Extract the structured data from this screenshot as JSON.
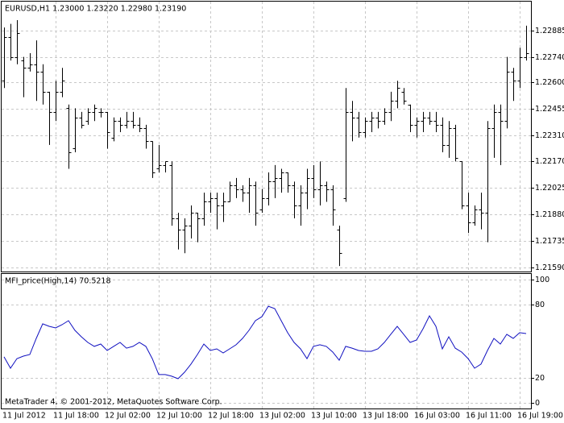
{
  "chart_data": [
    {
      "type": "ohlc",
      "title": "EURUSD,H1  1.23000 1.23220 1.22980 1.23190",
      "color": "#000000",
      "grid": true,
      "categories": [
        "11 Jul 2012",
        null,
        null,
        null,
        null,
        null,
        null,
        null,
        "11 Jul 18:00",
        null,
        null,
        null,
        null,
        null,
        null,
        null,
        "12 Jul 02:00",
        null,
        null,
        null,
        null,
        null,
        null,
        null,
        "12 Jul 10:00",
        null,
        null,
        null,
        null,
        null,
        null,
        null,
        "12 Jul 18:00",
        null,
        null,
        null,
        null,
        null,
        null,
        null,
        "13 Jul 02:00",
        null,
        null,
        null,
        null,
        null,
        null,
        null,
        "13 Jul 10:00",
        null,
        null,
        null,
        null,
        null,
        null,
        null,
        "13 Jul 18:00",
        null,
        null,
        null,
        null,
        null,
        null,
        null,
        "16 Jul 03:00",
        null,
        null,
        null,
        null,
        null,
        null,
        null,
        "16 Jul 11:00",
        null,
        null,
        null,
        null,
        null,
        null,
        null,
        "16 Jul 19:00",
        null
      ],
      "open": [
        1.2261,
        1.2285,
        1.2274,
        1.2272,
        1.2268,
        1.227,
        1.2266,
        1.2255,
        1.2244,
        1.2255,
        1.2246,
        1.2224,
        1.2241,
        1.2239,
        1.2244,
        1.2244,
        1.2244,
        1.223,
        1.2239,
        1.2237,
        1.2239,
        1.2237,
        1.2235,
        1.2228,
        1.2213,
        1.2215,
        1.2215,
        1.2186,
        1.218,
        1.2182,
        1.2189,
        1.2186,
        1.2195,
        1.2197,
        1.2193,
        1.2195,
        1.2204,
        1.2202,
        1.22,
        1.2204,
        1.2191,
        1.2197,
        1.2206,
        1.2208,
        1.2211,
        1.2204,
        1.2193,
        1.22,
        1.2208,
        1.2202,
        1.2204,
        1.2202,
        1.218,
        1.2197,
        1.2244,
        1.2241,
        1.2233,
        1.2239,
        1.2241,
        1.2239,
        1.2244,
        1.225,
        1.2255,
        1.2248,
        1.2237,
        1.2239,
        1.2241,
        1.2239,
        1.2237,
        1.2226,
        1.2235,
        1.2217,
        1.2193,
        1.2184,
        1.2191,
        1.2189,
        1.2235,
        1.2244,
        1.2239,
        1.2266,
        1.2261,
        1.2274
      ],
      "high": [
        1.229,
        1.2292,
        1.2294,
        1.2274,
        1.2276,
        1.2283,
        1.227,
        1.2255,
        1.2261,
        1.2268,
        1.2248,
        1.2246,
        1.2244,
        1.2246,
        1.2248,
        1.2246,
        1.2244,
        1.2241,
        1.2241,
        1.2244,
        1.2244,
        1.2241,
        1.2237,
        1.2228,
        1.2226,
        1.2217,
        1.2217,
        1.2189,
        1.2186,
        1.2193,
        1.2189,
        1.22,
        1.22,
        1.22,
        1.22,
        1.2206,
        1.2208,
        1.2204,
        1.2208,
        1.2206,
        1.2202,
        1.2211,
        1.2215,
        1.2213,
        1.2211,
        1.2206,
        1.2204,
        1.2213,
        1.2215,
        1.2217,
        1.2206,
        1.2204,
        1.2182,
        1.2257,
        1.225,
        1.2244,
        1.2241,
        1.2244,
        1.2244,
        1.2246,
        1.2255,
        1.2261,
        1.2257,
        1.2248,
        1.2241,
        1.2244,
        1.2244,
        1.2244,
        1.2241,
        1.2239,
        1.2237,
        1.2217,
        1.22,
        1.2193,
        1.22,
        1.2239,
        1.2248,
        1.2248,
        1.2274,
        1.2268,
        1.2279,
        1.2291
      ],
      "low": [
        1.2257,
        1.2272,
        1.227,
        1.2252,
        1.2266,
        1.225,
        1.2248,
        1.2226,
        1.2239,
        1.2252,
        1.2213,
        1.2222,
        1.2235,
        1.2237,
        1.2239,
        1.2241,
        1.2224,
        1.2228,
        1.2233,
        1.2235,
        1.2235,
        1.2233,
        1.2224,
        1.2208,
        1.2211,
        1.2211,
        1.2182,
        1.2169,
        1.2167,
        1.2175,
        1.2173,
        1.2182,
        1.2189,
        1.218,
        1.2184,
        1.2195,
        1.2197,
        1.2195,
        1.2189,
        1.2182,
        1.2189,
        1.2193,
        1.2197,
        1.22,
        1.22,
        1.2186,
        1.2182,
        1.2191,
        1.2197,
        1.2193,
        1.2195,
        1.2182,
        1.216,
        1.2195,
        1.2228,
        1.223,
        1.223,
        1.2233,
        1.2235,
        1.2237,
        1.2239,
        1.2246,
        1.2248,
        1.2233,
        1.223,
        1.2233,
        1.2237,
        1.2233,
        1.2222,
        1.2219,
        1.2217,
        1.2191,
        1.2178,
        1.2182,
        1.218,
        1.2173,
        1.2219,
        1.2215,
        1.2235,
        1.225,
        1.2257,
        1.2272
      ],
      "close": [
        1.2285,
        1.2274,
        1.2287,
        1.2268,
        1.227,
        1.2266,
        1.2255,
        1.2244,
        1.2255,
        1.2261,
        1.2222,
        1.2241,
        1.2237,
        1.2244,
        1.2246,
        1.2244,
        1.2233,
        1.2239,
        1.2237,
        1.2239,
        1.2237,
        1.2235,
        1.2228,
        1.2211,
        1.2215,
        1.2217,
        1.2186,
        1.218,
        1.2182,
        1.2189,
        1.2186,
        1.2195,
        1.2197,
        1.2193,
        1.2195,
        1.2204,
        1.2202,
        1.22,
        1.2204,
        1.2189,
        1.2197,
        1.2206,
        1.2208,
        1.2211,
        1.2204,
        1.2193,
        1.22,
        1.2208,
        1.2202,
        1.2204,
        1.2202,
        1.2191,
        1.2167,
        1.2244,
        1.2241,
        1.2233,
        1.2239,
        1.2241,
        1.2239,
        1.2244,
        1.225,
        1.2257,
        1.225,
        1.2237,
        1.2239,
        1.2241,
        1.2239,
        1.2237,
        1.2226,
        1.2235,
        1.2219,
        1.2193,
        1.2184,
        1.2191,
        1.2189,
        1.2235,
        1.2244,
        1.2239,
        1.2266,
        1.2261,
        1.2274,
        1.2276
      ],
      "ylim": [
        1.2157,
        1.2305
      ],
      "yticks": [
        1.22885,
        {
          "value": 1.2274,
          "label": "1.22740"
        },
        {
          "value": 1.226,
          "label": "1.22600"
        },
        1.22455,
        {
          "value": 1.2231,
          "label": "1.22310"
        },
        {
          "value": 1.2217,
          "label": "1.22170"
        },
        1.22025,
        {
          "value": 1.2188,
          "label": "1.21880"
        },
        1.21735,
        {
          "value": 1.2159,
          "label": "1.21590"
        }
      ]
    },
    {
      "type": "line",
      "title": "MFI_price(High,14) 70.5218",
      "color": "#1010c0",
      "grid": true,
      "values": [
        37.3,
        28.1,
        35.9,
        37.9,
        39.2,
        52.3,
        64.1,
        62.1,
        60.8,
        63.4,
        66.7,
        58.8,
        53.6,
        49.0,
        45.8,
        47.7,
        42.5,
        45.8,
        49.0,
        44.4,
        45.8,
        49.0,
        45.8,
        35.9,
        22.9,
        22.9,
        21.6,
        19.6,
        24.8,
        31.4,
        39.2,
        47.7,
        42.5,
        43.8,
        40.5,
        43.8,
        47.1,
        52.3,
        58.8,
        66.7,
        69.9,
        78.4,
        76.5,
        66.7,
        56.9,
        49.0,
        43.8,
        35.9,
        45.8,
        47.1,
        45.8,
        41.2,
        34.6,
        45.8,
        44.4,
        42.5,
        41.8,
        41.8,
        43.8,
        49.0,
        55.6,
        62.1,
        55.6,
        49.0,
        51.0,
        60.1,
        70.6,
        62.1,
        43.8,
        53.6,
        44.4,
        41.2,
        35.9,
        28.1,
        31.4,
        42.5,
        52.3,
        47.7,
        55.6,
        52.3,
        56.9,
        56.2
      ],
      "ylim": [
        -4.6,
        104.6
      ],
      "yticks": [
        0,
        20,
        80,
        100
      ],
      "annotations": [
        "MetaTrader 4, © 2001-2012, MetaQuotes Software Corp."
      ]
    }
  ]
}
